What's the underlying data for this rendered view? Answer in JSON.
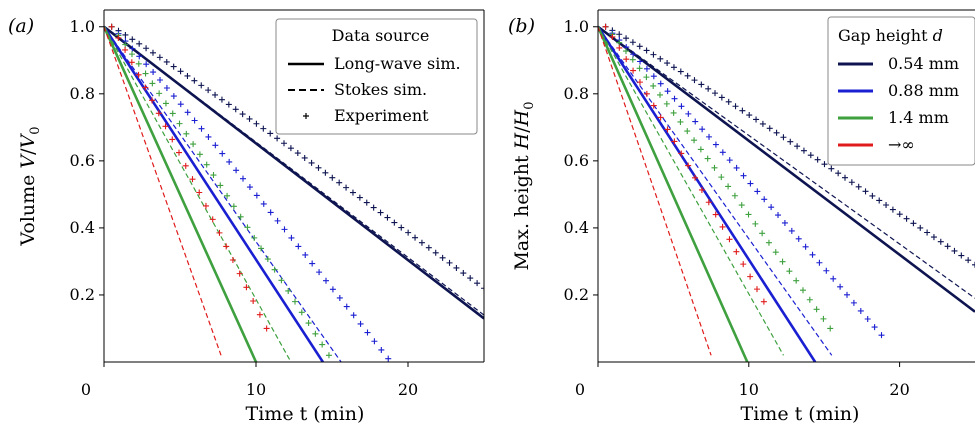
{
  "chart_data": [
    {
      "type": "line",
      "panel_label": "(a)",
      "xlabel": "Time t (min)",
      "ylabel": "Volume V/V0",
      "xlim": [
        0,
        25
      ],
      "ylim": [
        0,
        1.05
      ],
      "xticks": [
        0,
        10,
        20
      ],
      "yticks": [
        0.2,
        0.4,
        0.6,
        0.8,
        1.0
      ],
      "xtick_labels": [
        "0",
        "10",
        "20"
      ],
      "ytick_labels": [
        "0.2",
        "0.4",
        "0.6",
        "0.8",
        "1.0"
      ],
      "grid": false,
      "legend": {
        "title": "Data source",
        "placement": "top-right",
        "entries": [
          {
            "label": "Long-wave sim.",
            "style": "solid"
          },
          {
            "label": "Stokes sim.",
            "style": "dashed"
          },
          {
            "label": "Experiment",
            "style": "marker"
          }
        ]
      },
      "series": [
        {
          "gap": "0.54 mm",
          "color": "#0d1450",
          "longwave": {
            "x": [
              0,
              25
            ],
            "y": [
              1.0,
              0.13
            ]
          },
          "stokes": {
            "x": [
              0,
              25
            ],
            "y": [
              1.0,
              0.14
            ]
          },
          "experiment": {
            "x_end": 25,
            "y_end": 0.22
          }
        },
        {
          "gap": "0.88 mm",
          "color": "#1a1fd1",
          "longwave": {
            "x": [
              0,
              14.4
            ],
            "y": [
              1.0,
              0.0
            ]
          },
          "stokes": {
            "x": [
              0,
              15.6
            ],
            "y": [
              1.0,
              0.0
            ]
          },
          "experiment": {
            "x_end": 18.7,
            "y_end": 0.01
          }
        },
        {
          "gap": "1.4 mm",
          "color": "#3ea03e",
          "longwave": {
            "x": [
              0,
              10.0
            ],
            "y": [
              1.0,
              0.0
            ]
          },
          "stokes": {
            "x": [
              0,
              12.3
            ],
            "y": [
              1.0,
              0.0
            ]
          },
          "experiment": {
            "x_end": 14.8,
            "y_end": 0.02
          }
        },
        {
          "gap": "→∞",
          "color": "#e01b1b",
          "longwave": null,
          "stokes": {
            "x": [
              0,
              7.7
            ],
            "y": [
              1.0,
              0.02
            ]
          },
          "experiment": {
            "x_end": 10.7,
            "y_end": 0.1
          }
        }
      ]
    },
    {
      "type": "line",
      "panel_label": "(b)",
      "xlabel": "Time t (min)",
      "ylabel": "Max. height H/H0",
      "xlim": [
        0,
        25
      ],
      "ylim": [
        0,
        1.05
      ],
      "xticks": [
        0,
        10,
        20
      ],
      "yticks": [
        0.2,
        0.4,
        0.6,
        0.8,
        1.0
      ],
      "xtick_labels": [
        "0",
        "10",
        "20"
      ],
      "ytick_labels": [
        "0.2",
        "0.4",
        "0.6",
        "0.8",
        "1.0"
      ],
      "grid": false,
      "legend": {
        "title": "Gap height d",
        "placement": "top-right",
        "entries": [
          {
            "label": "0.54 mm",
            "color": "#0d1450"
          },
          {
            "label": "0.88 mm",
            "color": "#1a1fd1"
          },
          {
            "label": "1.4 mm",
            "color": "#3ea03e"
          },
          {
            "label": "→∞",
            "color": "#e01b1b"
          }
        ]
      },
      "series": [
        {
          "gap": "0.54 mm",
          "color": "#0d1450",
          "longwave": {
            "x": [
              0,
              25
            ],
            "y": [
              1.0,
              0.15
            ]
          },
          "stokes": {
            "x": [
              0,
              25
            ],
            "y": [
              1.0,
              0.19
            ]
          },
          "experiment": {
            "x_end": 25,
            "y_end": 0.29
          }
        },
        {
          "gap": "0.88 mm",
          "color": "#1a1fd1",
          "longwave": {
            "x": [
              0,
              14.4
            ],
            "y": [
              1.0,
              0.0
            ]
          },
          "stokes": {
            "x": [
              0,
              15.5
            ],
            "y": [
              1.0,
              0.02
            ]
          },
          "experiment": {
            "x_end": 18.8,
            "y_end": 0.08
          }
        },
        {
          "gap": "1.4 mm",
          "color": "#3ea03e",
          "longwave": {
            "x": [
              0,
              9.9
            ],
            "y": [
              1.0,
              0.0
            ]
          },
          "stokes": {
            "x": [
              0,
              12.3
            ],
            "y": [
              1.0,
              0.02
            ]
          },
          "experiment": {
            "x_end": 15.4,
            "y_end": 0.1
          }
        },
        {
          "gap": "→∞",
          "color": "#e01b1b",
          "longwave": null,
          "stokes": {
            "x": [
              0,
              7.5
            ],
            "y": [
              1.0,
              0.02
            ]
          },
          "experiment": {
            "x_end": 11.0,
            "y_end": 0.18
          }
        }
      ]
    }
  ]
}
